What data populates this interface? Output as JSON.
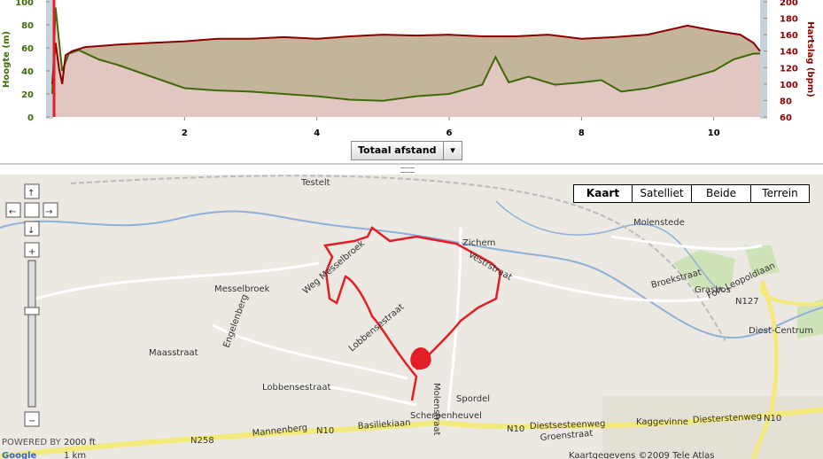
{
  "chart": {
    "type": "line",
    "y_label": "Hoogte (m)",
    "y2_label": "Hartslag (bpm)",
    "xlim": [
      0,
      10.7
    ],
    "xticks": [
      2,
      4,
      6,
      8,
      10
    ],
    "ylim": [
      0,
      100
    ],
    "yticks": [
      0,
      20,
      40,
      60,
      80,
      100
    ],
    "y2lim": [
      60,
      200
    ],
    "y2ticks": [
      60,
      80,
      100,
      120,
      140,
      160,
      180,
      200
    ],
    "series": [
      {
        "color": "#3f6a0a",
        "x": [
          0,
          0.05,
          0.15,
          0.25,
          0.4,
          0.7,
          1,
          1.5,
          2,
          2.5,
          3,
          3.5,
          4,
          4.5,
          5,
          5.5,
          6,
          6.5,
          6.7,
          6.9,
          7.2,
          7.6,
          8,
          8.3,
          8.6,
          9,
          9.5,
          10,
          10.3,
          10.6,
          10.7
        ],
        "values": [
          20,
          95,
          40,
          55,
          58,
          50,
          45,
          35,
          25,
          23,
          22,
          20,
          18,
          15,
          14,
          18,
          20,
          28,
          52,
          30,
          35,
          28,
          30,
          32,
          22,
          25,
          32,
          40,
          50,
          55,
          55
        ]
      },
      {
        "color": "#8a0000",
        "axis": "y2",
        "x": [
          0,
          0.05,
          0.1,
          0.15,
          0.2,
          0.3,
          0.5,
          1,
          1.5,
          2,
          2.5,
          3,
          3.5,
          4,
          4.5,
          5,
          5.5,
          6,
          6.5,
          7,
          7.5,
          8,
          8.5,
          9,
          9.6,
          10,
          10.4,
          10.6,
          10.7
        ],
        "values": [
          100,
          150,
          120,
          100,
          135,
          140,
          145,
          148,
          150,
          152,
          155,
          155,
          157,
          155,
          158,
          160,
          159,
          160,
          158,
          158,
          160,
          155,
          157,
          160,
          171,
          165,
          160,
          150,
          140
        ]
      }
    ]
  },
  "selector": "Totaal afstand",
  "map_types": [
    "Kaart",
    "Satelliet",
    "Beide",
    "Terrein"
  ],
  "labels": [
    "Testelt",
    "Zichem",
    "Molenstede",
    "Messelbroek",
    "Grasbos",
    "Diest-Centrum",
    "Scherpenheuvel",
    "Kaggevinne",
    "Mannenberg",
    "Basiliekiaan",
    "Diestsesteenweg",
    "Diesterstenweg",
    "Maasstraat",
    "Lobbensestraat",
    "Lobbensestraat",
    "Engelenberg",
    "Broekstraat",
    "Vestrstraat",
    "Spordel",
    "Groenstraat",
    "Fort Leopoldlaan",
    "N10",
    "N10",
    "N10",
    "N258",
    "N127",
    "Molenstraat",
    "Weg Messelbroek"
  ],
  "scale": [
    "2000 ft",
    "1 km"
  ],
  "powered": "POWERED BY",
  "copyright": "Kaartgegevens ©2009 Tele Atlas"
}
